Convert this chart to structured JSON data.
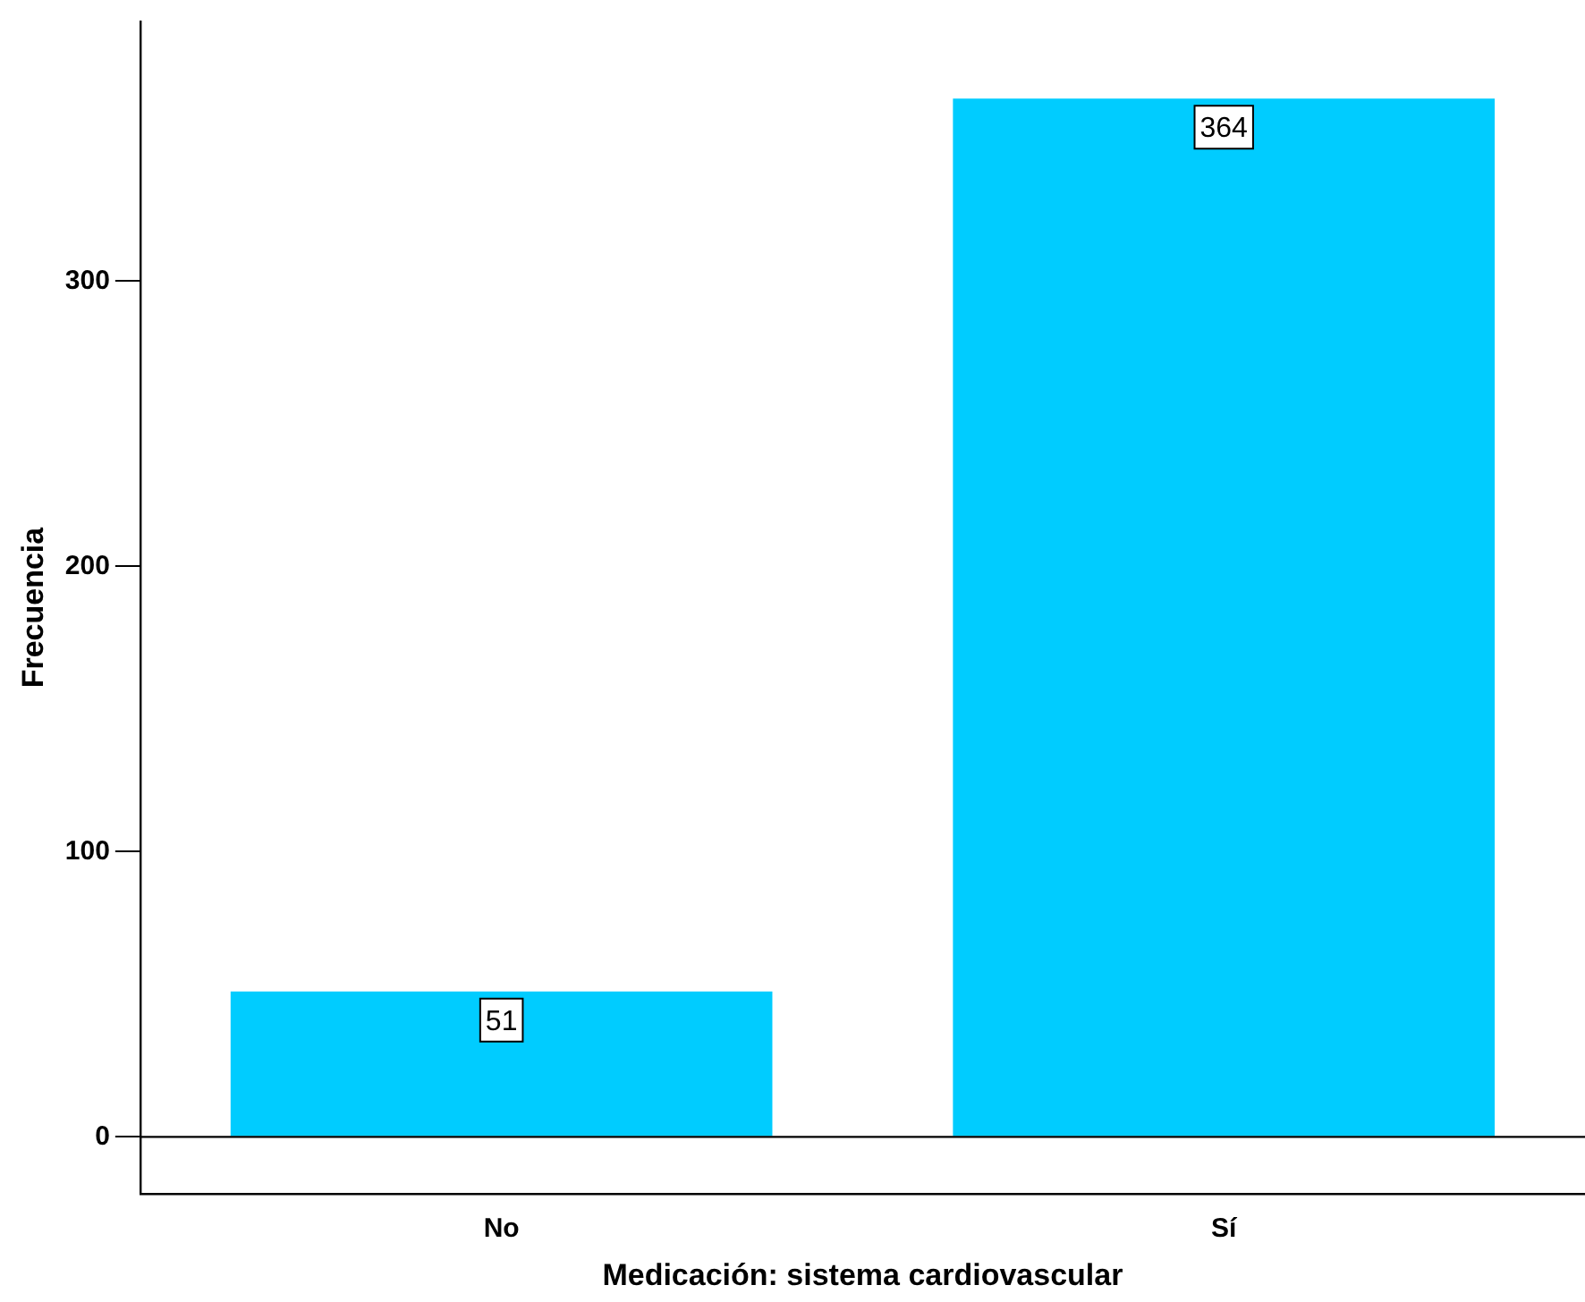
{
  "chart_data": {
    "type": "bar",
    "xlabel": "Medicación: sistema cardiovascular",
    "ylabel": "Frecuencia",
    "categories": [
      "No",
      "Sí"
    ],
    "series": [
      {
        "color": "#00ccff",
        "values": [
          51,
          364
        ]
      }
    ],
    "ylim": [
      -20,
      391
    ],
    "yticks": [
      0,
      100,
      200,
      300
    ],
    "ref_lines": [
      {
        "axis": "y",
        "value": 0,
        "color": "#000000"
      }
    ],
    "data_labels": true,
    "grid": false,
    "legend": false
  }
}
